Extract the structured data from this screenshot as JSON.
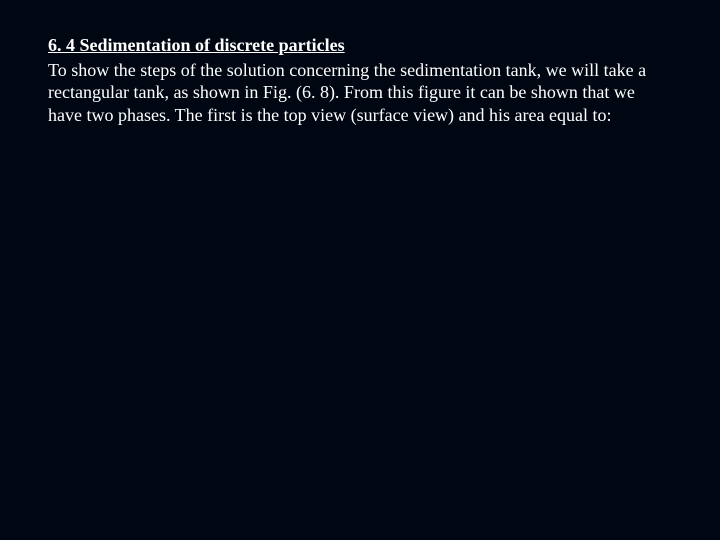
{
  "slide": {
    "background_color": "#000712",
    "text_color": "#ffffff",
    "font_family": "Times New Roman",
    "heading": {
      "text": "6. 4 Sedimentation of discrete particles",
      "font_size_pt": 18,
      "font_weight": "bold",
      "underline": true
    },
    "body": {
      "text": "To show the steps of the solution concerning the sedimentation tank, we will take a rectangular tank, as shown in Fig. (6. 8). From this figure it can be shown that we have two phases. The first is the top view (surface view) and his area equal to:",
      "font_size_pt": 18,
      "font_weight": "normal"
    }
  }
}
